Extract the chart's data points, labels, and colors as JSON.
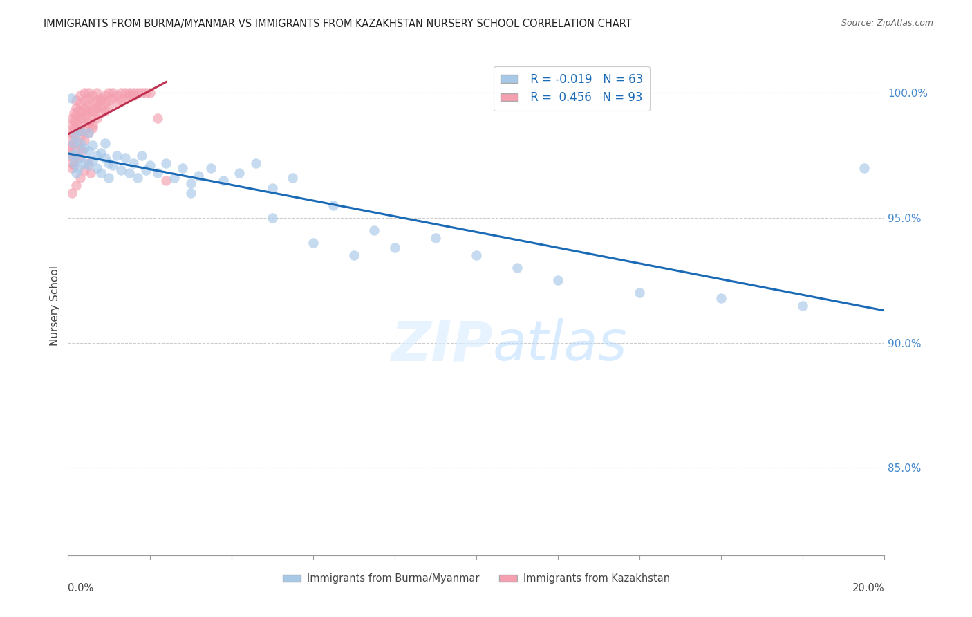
{
  "title": "IMMIGRANTS FROM BURMA/MYANMAR VS IMMIGRANTS FROM KAZAKHSTAN NURSERY SCHOOL CORRELATION CHART",
  "source": "Source: ZipAtlas.com",
  "ylabel": "Nursery School",
  "ytick_values": [
    1.0,
    0.95,
    0.9,
    0.85
  ],
  "xlim": [
    0.0,
    0.2
  ],
  "ylim": [
    0.815,
    1.015
  ],
  "legend_label1": "Immigrants from Burma/Myanmar",
  "legend_label2": "Immigrants from Kazakhstan",
  "r_blue": -0.019,
  "n_blue": 63,
  "r_pink": 0.456,
  "n_pink": 93,
  "blue_color": "#a8c8e8",
  "pink_color": "#f4a0b0",
  "trendline_blue_color": "#1a6ab5",
  "trendline_pink_color": "#c03050",
  "blue_scatter_x": [
    0.0008,
    0.001,
    0.0012,
    0.0015,
    0.0018,
    0.002,
    0.002,
    0.0025,
    0.003,
    0.003,
    0.003,
    0.004,
    0.004,
    0.005,
    0.005,
    0.005,
    0.006,
    0.006,
    0.007,
    0.007,
    0.008,
    0.008,
    0.009,
    0.009,
    0.01,
    0.01,
    0.011,
    0.012,
    0.013,
    0.014,
    0.015,
    0.016,
    0.017,
    0.018,
    0.019,
    0.02,
    0.022,
    0.024,
    0.026,
    0.028,
    0.03,
    0.032,
    0.035,
    0.038,
    0.042,
    0.046,
    0.05,
    0.055,
    0.06,
    0.065,
    0.07,
    0.075,
    0.08,
    0.09,
    0.1,
    0.11,
    0.12,
    0.14,
    0.16,
    0.18,
    0.195,
    0.05,
    0.03
  ],
  "blue_scatter_y": [
    0.998,
    0.975,
    0.98,
    0.972,
    0.983,
    0.968,
    0.976,
    0.97,
    0.974,
    0.98,
    0.985,
    0.972,
    0.978,
    0.971,
    0.977,
    0.984,
    0.973,
    0.979,
    0.975,
    0.97,
    0.976,
    0.968,
    0.974,
    0.98,
    0.972,
    0.966,
    0.971,
    0.975,
    0.969,
    0.974,
    0.968,
    0.972,
    0.966,
    0.975,
    0.969,
    0.971,
    0.968,
    0.972,
    0.966,
    0.97,
    0.964,
    0.967,
    0.97,
    0.965,
    0.968,
    0.972,
    0.962,
    0.966,
    0.94,
    0.955,
    0.935,
    0.945,
    0.938,
    0.942,
    0.935,
    0.93,
    0.925,
    0.92,
    0.918,
    0.915,
    0.97,
    0.95,
    0.96
  ],
  "pink_scatter_x": [
    0.0003,
    0.0005,
    0.0007,
    0.001,
    0.001,
    0.001,
    0.0012,
    0.0015,
    0.0015,
    0.002,
    0.002,
    0.002,
    0.002,
    0.0025,
    0.003,
    0.003,
    0.003,
    0.003,
    0.003,
    0.004,
    0.004,
    0.004,
    0.004,
    0.005,
    0.005,
    0.005,
    0.005,
    0.005,
    0.006,
    0.006,
    0.006,
    0.006,
    0.007,
    0.007,
    0.007,
    0.007,
    0.008,
    0.008,
    0.008,
    0.009,
    0.009,
    0.009,
    0.01,
    0.01,
    0.01,
    0.011,
    0.011,
    0.012,
    0.012,
    0.013,
    0.013,
    0.014,
    0.014,
    0.015,
    0.015,
    0.016,
    0.016,
    0.017,
    0.018,
    0.019,
    0.02,
    0.022,
    0.024,
    0.001,
    0.001,
    0.0008,
    0.0015,
    0.002,
    0.002,
    0.003,
    0.003,
    0.004,
    0.005,
    0.006,
    0.007,
    0.008,
    0.001,
    0.002,
    0.003,
    0.004,
    0.005,
    0.006,
    0.0035,
    0.0045,
    0.0055,
    0.0015,
    0.0025,
    0.0035,
    0.001,
    0.002,
    0.003,
    0.004,
    0.005
  ],
  "pink_scatter_y": [
    0.975,
    0.978,
    0.981,
    0.984,
    0.987,
    0.99,
    0.986,
    0.989,
    0.992,
    0.988,
    0.991,
    0.994,
    0.997,
    0.993,
    0.99,
    0.993,
    0.996,
    0.999,
    0.985,
    0.991,
    0.994,
    0.997,
    1.0,
    0.992,
    0.995,
    0.998,
    1.0,
    0.988,
    0.993,
    0.996,
    0.999,
    0.986,
    0.994,
    0.997,
    1.0,
    0.99,
    0.995,
    0.998,
    0.992,
    0.996,
    0.999,
    0.993,
    0.997,
    1.0,
    0.994,
    0.998,
    1.0,
    0.996,
    0.999,
    0.997,
    1.0,
    0.998,
    1.0,
    0.999,
    1.0,
    0.999,
    1.0,
    1.0,
    1.0,
    1.0,
    1.0,
    0.99,
    0.965,
    0.972,
    0.979,
    0.976,
    0.983,
    0.986,
    0.98,
    0.987,
    0.982,
    0.985,
    0.988,
    0.991,
    0.994,
    0.997,
    0.97,
    0.975,
    0.978,
    0.981,
    0.984,
    0.987,
    0.99,
    0.993,
    0.968,
    0.971,
    0.974,
    0.977,
    0.96,
    0.963,
    0.966,
    0.969,
    0.972
  ]
}
